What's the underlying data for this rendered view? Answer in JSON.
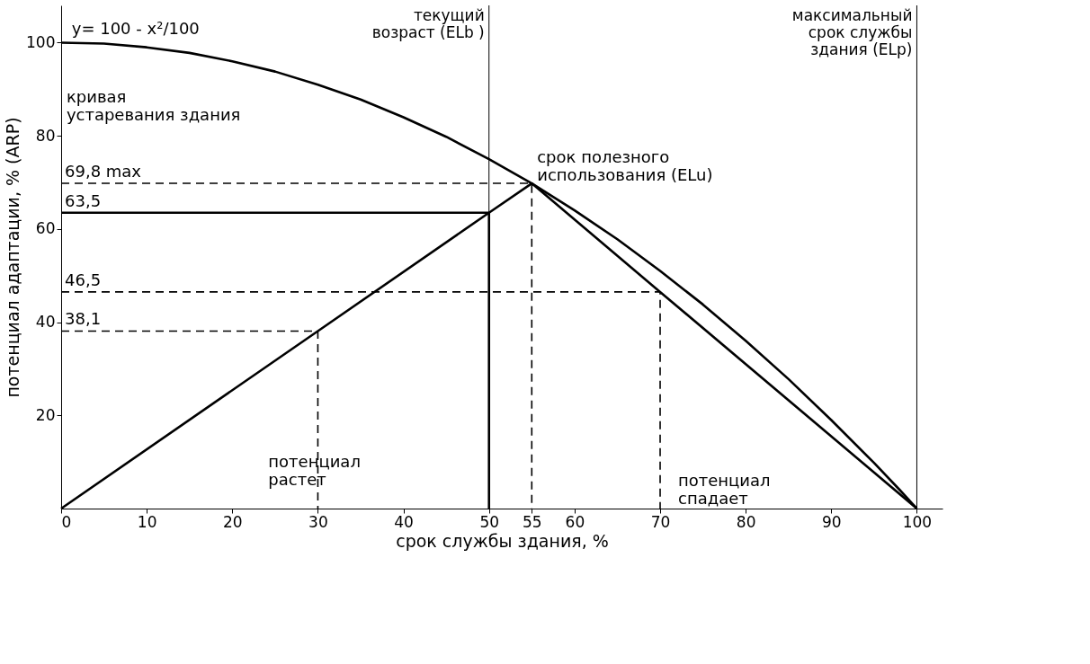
{
  "chart_data": {
    "type": "line",
    "xlabel": "срок службы здания, %",
    "ylabel": "потенциал адаптации, % (ARP)",
    "xlim": [
      0,
      103
    ],
    "ylim": [
      0,
      108
    ],
    "xticks": [
      0,
      10,
      20,
      30,
      40,
      50,
      55,
      60,
      70,
      80,
      90,
      100
    ],
    "yticks": [
      20,
      40,
      60,
      80,
      100
    ],
    "grid": false,
    "marker": "none",
    "series": [
      {
        "color": "#000000",
        "line_style": "solid",
        "x": [
          0,
          5,
          10,
          15,
          20,
          25,
          30,
          35,
          40,
          45,
          50,
          55,
          60,
          65,
          70,
          75,
          80,
          85,
          90,
          95,
          98,
          100
        ],
        "values": [
          100,
          99.8,
          99,
          97.8,
          96,
          93.8,
          91,
          87.8,
          84,
          79.8,
          75,
          69.8,
          64,
          57.8,
          51,
          43.8,
          36,
          27.8,
          19,
          9.8,
          4,
          0
        ]
      },
      {
        "color": "#000000",
        "line_style": "solid",
        "x": [
          0,
          30,
          50,
          55
        ],
        "values": [
          0,
          38.1,
          63.5,
          69.8
        ]
      },
      {
        "color": "#000000",
        "line_style": "solid",
        "x": [
          55,
          70,
          100
        ],
        "values": [
          69.8,
          46.5,
          0
        ]
      },
      {
        "color": "#000000",
        "line_style": "solid",
        "x": [
          0,
          50,
          50
        ],
        "values": [
          63.5,
          63.5,
          0
        ]
      },
      {
        "color": "#000000",
        "line_style": "dashed",
        "x": [
          0,
          55,
          55
        ],
        "values": [
          69.8,
          69.8,
          0
        ]
      },
      {
        "color": "#000000",
        "line_style": "dashed",
        "x": [
          0,
          70,
          70
        ],
        "values": [
          46.5,
          46.5,
          0
        ]
      },
      {
        "color": "#000000",
        "line_style": "dashed",
        "x": [
          0,
          30,
          30
        ],
        "values": [
          38.1,
          38.1,
          0
        ]
      }
    ],
    "ref_lines": [
      {
        "axis": "x",
        "value": 50,
        "label": "текущий\nвозраст (ELb )",
        "color": "#000000"
      },
      {
        "axis": "x",
        "value": 100,
        "label": "максимальный\nсрок службы\nздания  (ELp)",
        "color": "#000000"
      }
    ],
    "annotations": [
      "y= 100 - x²/100",
      "кривая\nустаревания здания",
      "срок полезного\nиспользования (ELu)",
      {
        "text": "69,8 max",
        "y": 69.8
      },
      {
        "text": "63,5",
        "y": 63.5
      },
      {
        "text": "46,5",
        "y": 46.5
      },
      {
        "text": "38,1",
        "y": 38.1
      },
      "потенциал\nрастет",
      "потенциал\nспадает"
    ]
  }
}
